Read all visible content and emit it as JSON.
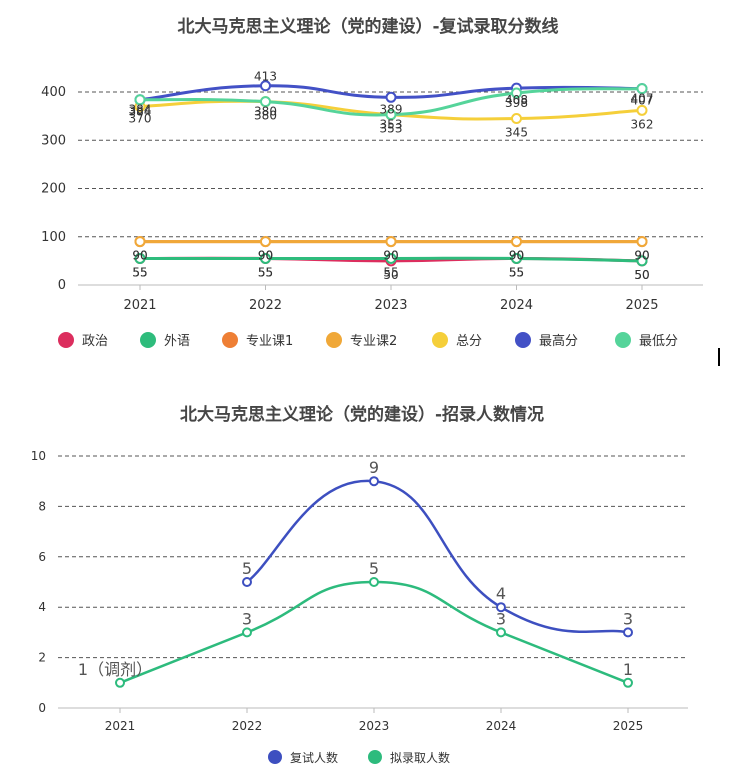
{
  "chart_data": [
    {
      "type": "line",
      "title": "北大马克思主义理论（党的建设）-复试录取分数线",
      "categories": [
        "2021",
        "2022",
        "2023",
        "2024",
        "2025"
      ],
      "yticks": [
        "0",
        "100",
        "200",
        "300",
        "400"
      ],
      "ylim": [
        0,
        400
      ],
      "grid": true,
      "legend_position": "bottom",
      "series": [
        {
          "name": "政治",
          "color": "#dc2e5e",
          "values": [
            55,
            55,
            50,
            55,
            50
          ],
          "labels": [
            "55",
            "55",
            "50",
            "55",
            "50"
          ]
        },
        {
          "name": "外语",
          "color": "#2ebc7c",
          "values": [
            55,
            55,
            55,
            55,
            50
          ],
          "labels": [
            "55",
            "55",
            "55",
            "55",
            "50"
          ]
        },
        {
          "name": "专业课1",
          "color": "#ee7f35",
          "values": [
            90,
            90,
            90,
            90,
            90
          ],
          "labels": [
            "90",
            "90",
            "90",
            "90",
            "90"
          ]
        },
        {
          "name": "专业课2",
          "color": "#f0a838",
          "values": [
            90,
            90,
            90,
            90,
            90
          ],
          "labels": [
            "90",
            "90",
            "90",
            "90",
            "90"
          ]
        },
        {
          "name": "总分",
          "color": "#f5cf3a",
          "values": [
            370,
            380,
            353,
            345,
            362
          ],
          "labels": [
            "370",
            "380",
            "353",
            "345",
            "362"
          ]
        },
        {
          "name": "最高分",
          "color": "#4351c6",
          "values": [
            384,
            413,
            389,
            408,
            407
          ],
          "labels": [
            "384",
            "413",
            "389",
            "408",
            "407"
          ]
        },
        {
          "name": "最低分",
          "color": "#55d49a",
          "values": [
            384,
            380,
            353,
            398,
            407
          ],
          "labels": [
            "384",
            "380",
            "353",
            "398",
            "407"
          ]
        }
      ]
    },
    {
      "type": "line",
      "title": "北大马克思主义理论（党的建设）-招录人数情况",
      "categories": [
        "2021",
        "2022",
        "2023",
        "2024",
        "2025"
      ],
      "yticks": [
        "0",
        "2",
        "4",
        "6",
        "8",
        "10"
      ],
      "ylim": [
        0,
        10
      ],
      "grid": true,
      "legend_position": "bottom",
      "series": [
        {
          "name": "复试人数",
          "color": "#3d4fc0",
          "values": [
            null,
            5,
            9,
            4,
            3
          ],
          "labels": [
            "",
            "5",
            "9",
            "4",
            "3"
          ]
        },
        {
          "name": "拟录取人数",
          "color": "#2dbb7d",
          "values": [
            1,
            3,
            5,
            3,
            1
          ],
          "labels": [
            "1（调剂）",
            "3",
            "5",
            "3",
            "1"
          ]
        }
      ]
    }
  ]
}
